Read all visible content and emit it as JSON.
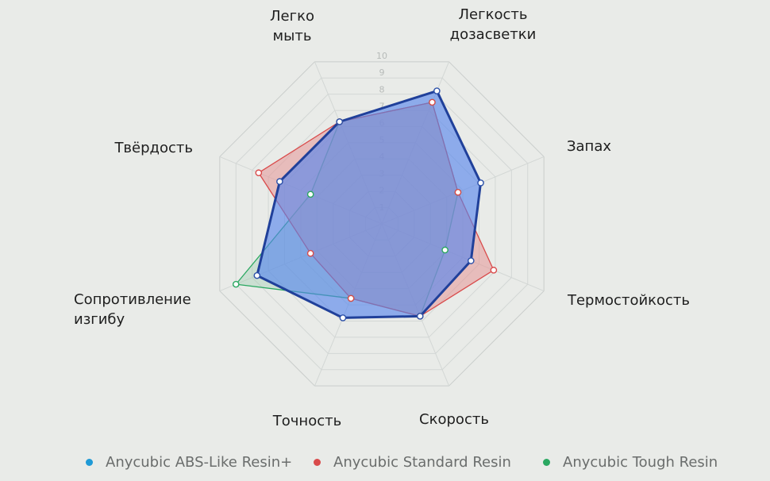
{
  "chart_data": {
    "type": "radar",
    "axes": [
      [
        "Легко",
        "мыть"
      ],
      [
        "Легкость",
        "дозасветки"
      ],
      [
        "Запах"
      ],
      [
        "Термостойкость"
      ],
      [
        "Скорость"
      ],
      [
        "Точность"
      ],
      [
        "Сопротивление",
        "изгибу"
      ],
      [
        "Твёрдость"
      ]
    ],
    "rlim": [
      0,
      10
    ],
    "ticks": [
      "1",
      "2",
      "3",
      "4",
      "5",
      "6",
      "7",
      "8",
      "9",
      "10"
    ],
    "grid": true,
    "legend_position": "bottom",
    "series": [
      {
        "name": "Anycubic ABS-Like Resin+",
        "color": "#1f9ad6",
        "values": [
          6.3,
          8.2,
          6.1,
          5.5,
          5.7,
          5.8,
          7.7,
          6.3
        ]
      },
      {
        "name": "Anycubic Standard Resin",
        "color": "#d94b4b",
        "values": [
          6.3,
          7.5,
          4.7,
          6.9,
          5.7,
          4.6,
          4.4,
          7.6
        ]
      },
      {
        "name": "Anycubic Tough Resin",
        "color": "#2aa861",
        "values": [
          6.3,
          7.5,
          4.7,
          3.9,
          5.7,
          4.6,
          9.0,
          4.4
        ]
      }
    ]
  }
}
